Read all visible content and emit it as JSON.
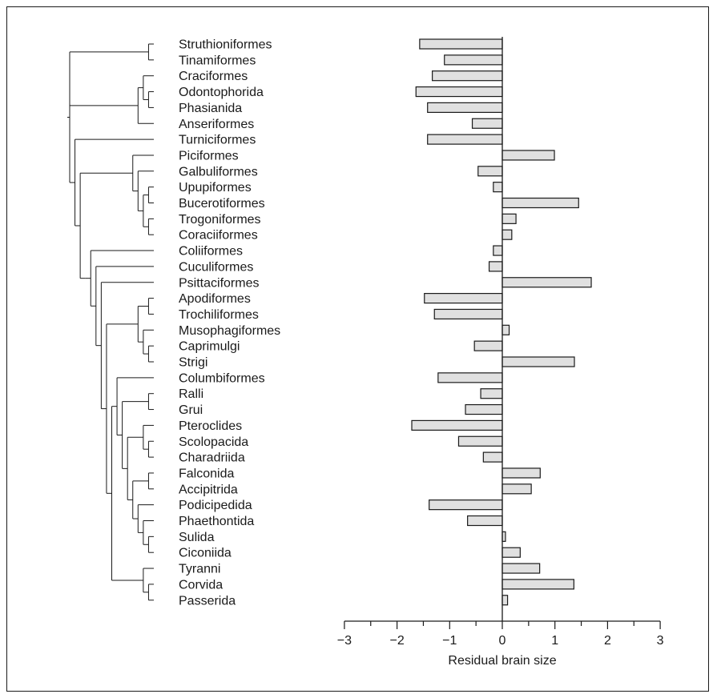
{
  "chart_data": {
    "type": "bar",
    "orientation": "horizontal",
    "xlabel": "Residual brain size",
    "xlim": [
      -3,
      3
    ],
    "xticks": [
      "−3",
      "−2",
      "−1",
      "0",
      "1",
      "2",
      "3"
    ],
    "minor_ticks": true,
    "grid": false,
    "bar_color": "#e0e0e0",
    "bar_edge_color": "#1a1a1a",
    "categories": [
      "Struthioniformes",
      "Tinamiformes",
      "Craciformes",
      "Odontophorida",
      "Phasianida",
      "Anseriformes",
      "Turniciformes",
      "Piciformes",
      "Galbuliformes",
      "Upupiformes",
      "Bucerotiformes",
      "Trogoniformes",
      "Coraciiformes",
      "Coliiformes",
      "Cuculiformes",
      "Psittaciformes",
      "Apodiformes",
      "Trochiliformes",
      "Musophagiformes",
      "Caprimulgi",
      "Strigi",
      "Columbiformes",
      "Ralli",
      "Grui",
      "Pteroclides",
      "Scolopacida",
      "Charadriida",
      "Falconida",
      "Accipitrida",
      "Podicipedida",
      "Phaethontida",
      "Sulida",
      "Ciconiida",
      "Tyranni",
      "Corvida",
      "Passerida"
    ],
    "values": [
      -1.57,
      -1.1,
      -1.33,
      -1.64,
      -1.42,
      -0.57,
      -1.42,
      0.99,
      -0.46,
      -0.17,
      1.45,
      0.26,
      0.18,
      -0.17,
      -0.25,
      1.69,
      -1.48,
      -1.29,
      0.13,
      -0.53,
      1.37,
      -1.22,
      -0.41,
      -0.7,
      -1.72,
      -0.83,
      -0.36,
      0.72,
      0.55,
      -1.39,
      -0.66,
      0.06,
      0.34,
      0.71,
      1.36,
      0.1
    ],
    "phylogeny": "((Struthioniformes,Tinamiformes),((Craciformes,(Odontophorida,Phasianida)),Anseriformes),(Turniciformes,((Piciformes,(Galbuliformes,((Upupiformes,Bucerotiformes),(Trogoniformes,Coraciiformes)))),((Coliiformes,(Cuculiformes,(Psittaciformes,(((Apodiformes,Trochiliformes),(Musophagiformes,(Caprimulgi,Strigi))),((Columbiformes,((Ralli,Grui),((Pteroclides,(Scolopacida,Charadriida)),((Falconida,Accipitrida),(Podicipedida,(Phaethontida,(Sulida,Ciconiida))))))),(Tyranni,(Corvida,Passerida))))))))))))"
  }
}
